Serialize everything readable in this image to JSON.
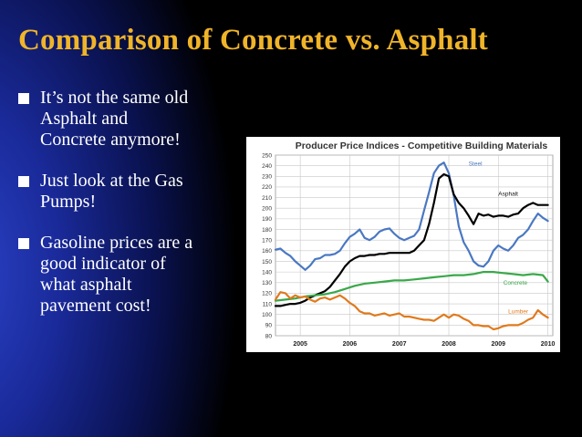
{
  "slide": {
    "title": "Comparison of Concrete vs. Asphalt",
    "bullets": [
      {
        "lines": [
          "It’s not the same old",
          "Asphalt and",
          "Concrete anymore!"
        ]
      },
      {
        "lines": [
          "Just look at the Gas",
          "Pumps!"
        ]
      },
      {
        "lines": [
          "Gasoline prices are a",
          "good indicator of",
          "what asphalt",
          "pavement cost!"
        ]
      }
    ],
    "colors": {
      "title": "#f0b429",
      "text": "#ffffff",
      "background": "#000000",
      "accent": "#2b43c9"
    }
  },
  "chart_data": {
    "type": "line",
    "title": "Producer Price Indices - Competitive Building Materials",
    "xlabel": "",
    "ylabel": "",
    "ylim": [
      80,
      250
    ],
    "yticks": [
      80,
      90,
      100,
      110,
      120,
      130,
      140,
      150,
      160,
      170,
      180,
      190,
      200,
      210,
      220,
      230,
      240,
      250
    ],
    "xlim": [
      2004.5,
      2010.1
    ],
    "xticks": [
      2005,
      2006,
      2007,
      2008,
      2009,
      2010
    ],
    "grid": true,
    "series": [
      {
        "name": "Steel",
        "color": "#4a78c2",
        "x": [
          2004.5,
          2004.6,
          2004.7,
          2004.8,
          2004.9,
          2005.0,
          2005.1,
          2005.2,
          2005.3,
          2005.4,
          2005.5,
          2005.6,
          2005.7,
          2005.8,
          2005.9,
          2006.0,
          2006.1,
          2006.2,
          2006.3,
          2006.4,
          2006.5,
          2006.6,
          2006.7,
          2006.8,
          2006.9,
          2007.0,
          2007.1,
          2007.2,
          2007.3,
          2007.4,
          2007.5,
          2007.6,
          2007.7,
          2007.8,
          2007.9,
          2008.0,
          2008.1,
          2008.2,
          2008.3,
          2008.4,
          2008.5,
          2008.6,
          2008.7,
          2008.8,
          2008.9,
          2009.0,
          2009.1,
          2009.2,
          2009.3,
          2009.4,
          2009.5,
          2009.6,
          2009.7,
          2009.8,
          2009.9,
          2010.0
        ],
        "y": [
          161,
          162,
          158,
          155,
          150,
          146,
          142,
          146,
          152,
          153,
          156,
          156,
          157,
          160,
          167,
          173,
          176,
          180,
          172,
          170,
          173,
          178,
          180,
          181,
          176,
          172,
          170,
          172,
          174,
          180,
          198,
          215,
          233,
          240,
          243,
          233,
          212,
          183,
          168,
          160,
          150,
          146,
          145,
          150,
          160,
          165,
          162,
          160,
          165,
          172,
          175,
          180,
          188,
          195,
          191,
          188
        ]
      },
      {
        "name": "Asphalt",
        "color": "#000000",
        "x": [
          2004.5,
          2004.6,
          2004.7,
          2004.8,
          2004.9,
          2005.0,
          2005.1,
          2005.2,
          2005.3,
          2005.4,
          2005.5,
          2005.6,
          2005.7,
          2005.8,
          2005.9,
          2006.0,
          2006.1,
          2006.2,
          2006.3,
          2006.4,
          2006.5,
          2006.6,
          2006.7,
          2006.8,
          2006.9,
          2007.0,
          2007.1,
          2007.2,
          2007.3,
          2007.4,
          2007.5,
          2007.6,
          2007.7,
          2007.8,
          2007.9,
          2008.0,
          2008.1,
          2008.2,
          2008.3,
          2008.4,
          2008.5,
          2008.6,
          2008.7,
          2008.8,
          2008.9,
          2009.0,
          2009.1,
          2009.2,
          2009.3,
          2009.4,
          2009.5,
          2009.6,
          2009.7,
          2009.8,
          2009.9,
          2010.0
        ],
        "y": [
          108,
          108,
          109,
          110,
          110,
          111,
          113,
          116,
          118,
          120,
          122,
          126,
          132,
          138,
          145,
          150,
          153,
          155,
          155,
          156,
          156,
          157,
          157,
          158,
          158,
          158,
          158,
          158,
          160,
          165,
          170,
          185,
          205,
          228,
          232,
          230,
          213,
          205,
          200,
          193,
          185,
          195,
          193,
          194,
          192,
          193,
          193,
          192,
          194,
          195,
          200,
          203,
          205,
          203,
          203,
          203
        ]
      },
      {
        "name": "Concrete",
        "color": "#3aa84a",
        "x": [
          2004.5,
          2004.7,
          2004.9,
          2005.1,
          2005.3,
          2005.5,
          2005.7,
          2005.9,
          2006.1,
          2006.3,
          2006.5,
          2006.7,
          2006.9,
          2007.1,
          2007.3,
          2007.5,
          2007.7,
          2007.9,
          2008.1,
          2008.3,
          2008.5,
          2008.7,
          2008.9,
          2009.1,
          2009.3,
          2009.5,
          2009.7,
          2009.9,
          2010.0
        ],
        "y": [
          113,
          114,
          115,
          117,
          118,
          119,
          121,
          124,
          127,
          129,
          130,
          131,
          132,
          132,
          133,
          134,
          135,
          136,
          137,
          137,
          138,
          140,
          140,
          139,
          138,
          137,
          138,
          137,
          131
        ]
      },
      {
        "name": "Lumber",
        "color": "#e07a1c",
        "x": [
          2004.5,
          2004.6,
          2004.7,
          2004.8,
          2004.9,
          2005.0,
          2005.1,
          2005.2,
          2005.3,
          2005.4,
          2005.5,
          2005.6,
          2005.7,
          2005.8,
          2005.9,
          2006.0,
          2006.1,
          2006.2,
          2006.3,
          2006.4,
          2006.5,
          2006.6,
          2006.7,
          2006.8,
          2006.9,
          2007.0,
          2007.1,
          2007.2,
          2007.3,
          2007.4,
          2007.5,
          2007.6,
          2007.7,
          2007.8,
          2007.9,
          2008.0,
          2008.1,
          2008.2,
          2008.3,
          2008.4,
          2008.5,
          2008.6,
          2008.7,
          2008.8,
          2008.9,
          2009.0,
          2009.1,
          2009.2,
          2009.3,
          2009.4,
          2009.5,
          2009.6,
          2009.7,
          2009.8,
          2009.9,
          2010.0
        ],
        "y": [
          114,
          121,
          120,
          115,
          118,
          116,
          117,
          114,
          112,
          115,
          116,
          114,
          116,
          118,
          115,
          111,
          108,
          103,
          101,
          101,
          99,
          100,
          101,
          99,
          100,
          101,
          98,
          98,
          97,
          96,
          95,
          95,
          94,
          97,
          100,
          97,
          100,
          99,
          96,
          94,
          90,
          90,
          89,
          89,
          86,
          87,
          89,
          90,
          90,
          90,
          92,
          95,
          97,
          104,
          100,
          97
        ]
      }
    ]
  }
}
